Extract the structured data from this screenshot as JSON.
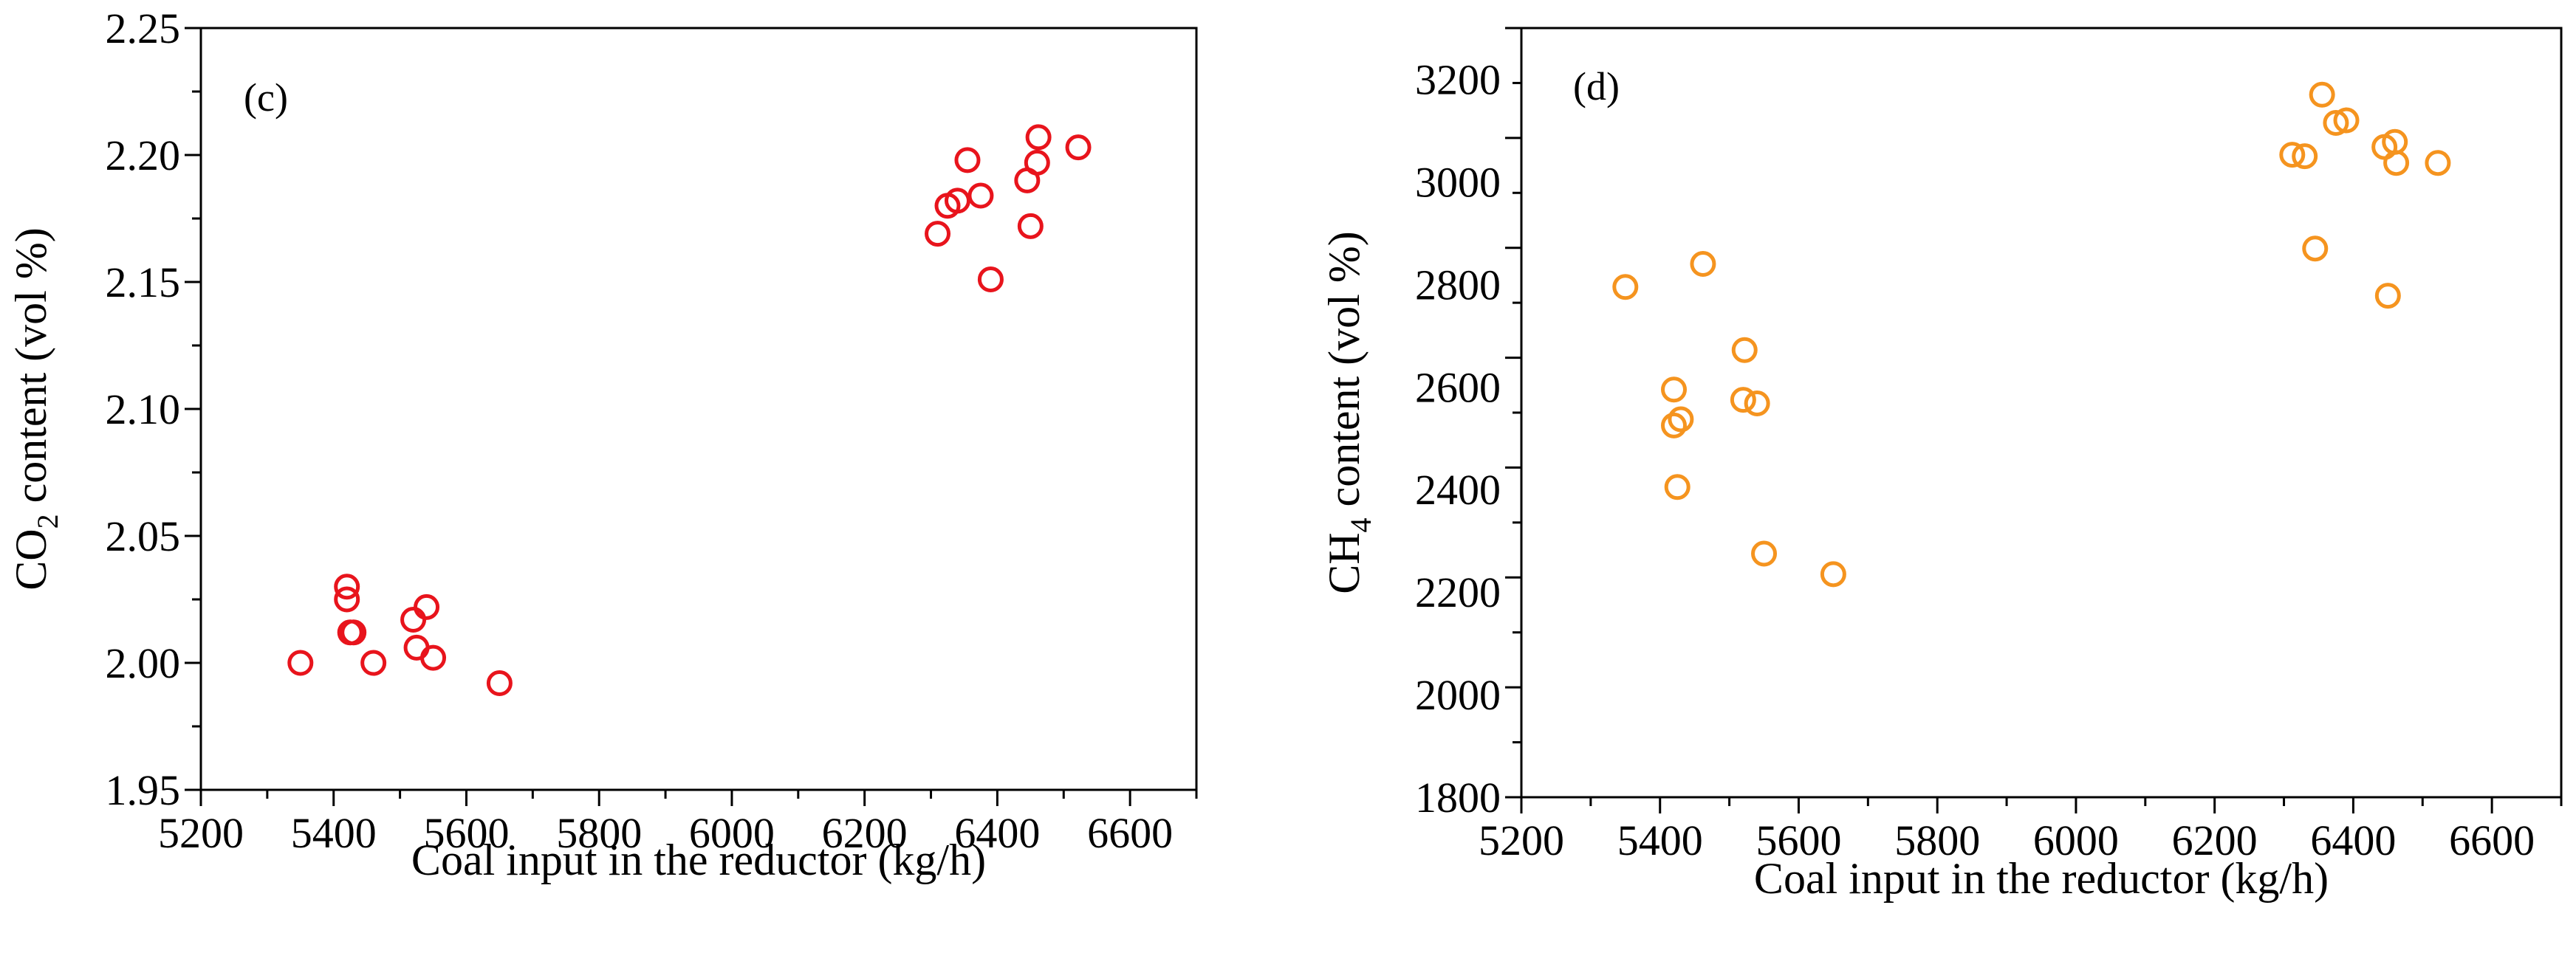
{
  "chart_data": [
    {
      "type": "scatter",
      "panel_label": "(c)",
      "xlabel": "Coal input in the reductor (kg/h)",
      "ylabel_prefix": "CO",
      "ylabel_sub": "2",
      "ylabel_suffix": " content (vol %)",
      "xlim": [
        5200,
        6700
      ],
      "ylim": [
        1.95,
        2.25
      ],
      "xticks": [
        "5200",
        "5400",
        "5600",
        "5800",
        "6000",
        "6200",
        "6400",
        "6600"
      ],
      "yticks": [
        "1.95",
        "2.00",
        "2.05",
        "2.10",
        "2.15",
        "2.20",
        "2.25"
      ],
      "marker_color": "#e8141c",
      "points": [
        {
          "x": 5350,
          "y": 2.0
        },
        {
          "x": 5420,
          "y": 2.03
        },
        {
          "x": 5420,
          "y": 2.025
        },
        {
          "x": 5425,
          "y": 2.012
        },
        {
          "x": 5430,
          "y": 2.012
        },
        {
          "x": 5460,
          "y": 2.0
        },
        {
          "x": 5520,
          "y": 2.017
        },
        {
          "x": 5525,
          "y": 2.006
        },
        {
          "x": 5540,
          "y": 2.022
        },
        {
          "x": 5550,
          "y": 2.002
        },
        {
          "x": 5650,
          "y": 1.992
        },
        {
          "x": 6310,
          "y": 2.169
        },
        {
          "x": 6325,
          "y": 2.18
        },
        {
          "x": 6340,
          "y": 2.182
        },
        {
          "x": 6355,
          "y": 2.198
        },
        {
          "x": 6375,
          "y": 2.184
        },
        {
          "x": 6390,
          "y": 2.151
        },
        {
          "x": 6445,
          "y": 2.19
        },
        {
          "x": 6450,
          "y": 2.172
        },
        {
          "x": 6460,
          "y": 2.197
        },
        {
          "x": 6462,
          "y": 2.207
        },
        {
          "x": 6522,
          "y": 2.203
        }
      ]
    },
    {
      "type": "scatter",
      "panel_label": "(d)",
      "xlabel": "Coal input in the reductor (kg/h)",
      "ylabel_prefix": "CH",
      "ylabel_sub": "4",
      "ylabel_suffix": " content (vol %)",
      "xlim": [
        5200,
        6700
      ],
      "ylim": [
        1800,
        3300
      ],
      "xticks": [
        "5200",
        "5400",
        "5600",
        "5800",
        "6000",
        "6200",
        "6400",
        "6600"
      ],
      "yticks": [
        "1800",
        "2000",
        "2200",
        "2400",
        "2600",
        "2800",
        "3000",
        "3200"
      ],
      "marker_color": "#f5941f",
      "points": [
        {
          "x": 5350,
          "y": 2795
        },
        {
          "x": 5420,
          "y": 2595
        },
        {
          "x": 5420,
          "y": 2525
        },
        {
          "x": 5430,
          "y": 2537
        },
        {
          "x": 5425,
          "y": 2405
        },
        {
          "x": 5462,
          "y": 2840
        },
        {
          "x": 5522,
          "y": 2672
        },
        {
          "x": 5520,
          "y": 2575
        },
        {
          "x": 5540,
          "y": 2568
        },
        {
          "x": 5550,
          "y": 2275
        },
        {
          "x": 5650,
          "y": 2235
        },
        {
          "x": 6312,
          "y": 3053
        },
        {
          "x": 6330,
          "y": 3050
        },
        {
          "x": 6345,
          "y": 2870
        },
        {
          "x": 6355,
          "y": 3170
        },
        {
          "x": 6375,
          "y": 3115
        },
        {
          "x": 6390,
          "y": 3120
        },
        {
          "x": 6445,
          "y": 3068
        },
        {
          "x": 6450,
          "y": 2778
        },
        {
          "x": 6460,
          "y": 3078
        },
        {
          "x": 6462,
          "y": 3037
        },
        {
          "x": 6522,
          "y": 3037
        }
      ]
    }
  ]
}
